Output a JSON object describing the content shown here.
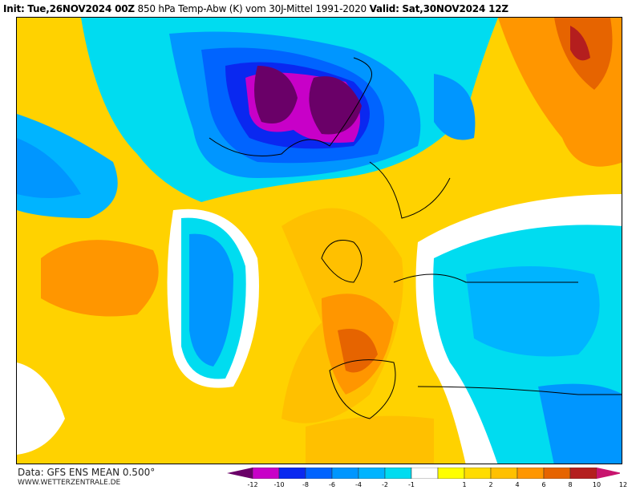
{
  "header": {
    "init_label": "Init:",
    "init": "Tue,26NOV2024 00Z",
    "description": "850 hPa Temp-Abw (K) vom 30J-Mittel 1991-2020",
    "valid_label": "Valid:",
    "valid": "Sat,30NOV2024 12Z"
  },
  "footer": {
    "source": "Data: GFS ENS MEAN 0.500°",
    "website": "WWW.WETTERZENTRALE.DE"
  },
  "legend": {
    "colors": [
      "#6a0068",
      "#c800c8",
      "#0a28f0",
      "#0064ff",
      "#0096ff",
      "#00b4ff",
      "#00dcf0",
      "#ffffff",
      "#ffff00",
      "#ffdc00",
      "#ffc000",
      "#ff9600",
      "#e66400",
      "#b41e1e",
      "#c8146e"
    ],
    "ticks": [
      "-12",
      "-10",
      "-8",
      "-6",
      "-4",
      "-2",
      "-1",
      "1",
      "2",
      "4",
      "6",
      "8",
      "10",
      "12"
    ]
  }
}
